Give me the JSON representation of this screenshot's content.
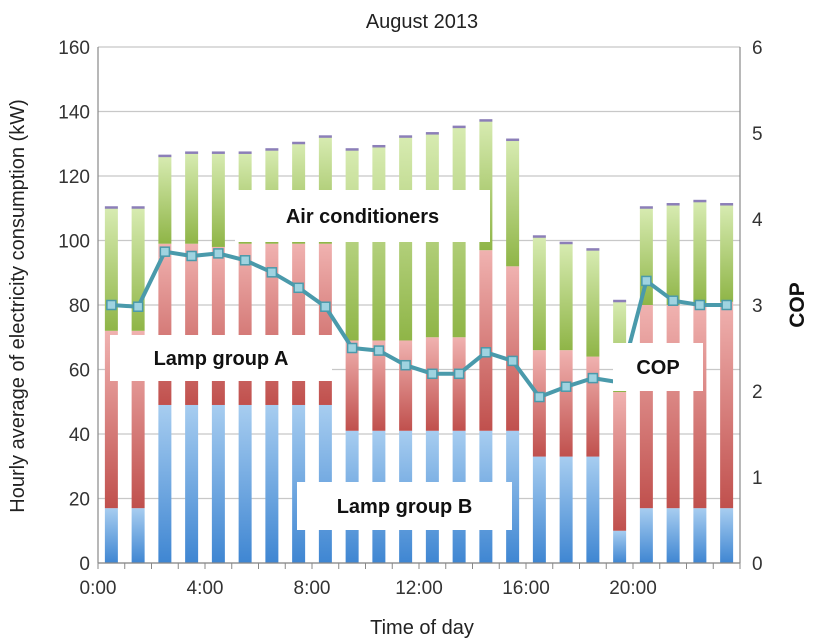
{
  "chart_data": {
    "type": "bar",
    "stacked": true,
    "title": "August 2013",
    "xlabel": "Time of day",
    "ylabel": "Hourly average of electricity consumption (kW)",
    "y2label": "COP",
    "ylim": [
      0,
      160
    ],
    "y2lim": [
      0,
      6
    ],
    "yticks": [
      "0",
      "20",
      "40",
      "60",
      "80",
      "100",
      "120",
      "140",
      "160"
    ],
    "y2ticks": [
      "0",
      "1",
      "2",
      "3",
      "4",
      "5",
      "6"
    ],
    "xticks": [
      "0:00",
      "4:00",
      "8:00",
      "12:00",
      "16:00",
      "20:00"
    ],
    "grid": true,
    "hours": [
      0,
      1,
      2,
      3,
      4,
      5,
      6,
      7,
      8,
      9,
      10,
      11,
      12,
      13,
      14,
      15,
      16,
      17,
      18,
      19,
      20,
      21,
      22,
      23
    ],
    "series": [
      {
        "name": "Lamp group B",
        "color": "#5b9bd5",
        "values": [
          17,
          17,
          49,
          49,
          49,
          49,
          49,
          49,
          49,
          41,
          41,
          41,
          41,
          41,
          41,
          41,
          33,
          33,
          33,
          10,
          17,
          17,
          17,
          17
        ]
      },
      {
        "name": "Lamp group A",
        "color": "#c0504d",
        "values": [
          55,
          55,
          50,
          50,
          49,
          50,
          50,
          50,
          50,
          28,
          28,
          28,
          29,
          29,
          56,
          51,
          33,
          33,
          31,
          43,
          63,
          63,
          63,
          64
        ]
      },
      {
        "name": "Air conditioners",
        "color": "#9bbb59",
        "values": [
          38,
          38,
          27,
          28,
          29,
          28,
          29,
          31,
          33,
          59,
          60,
          63,
          63,
          65,
          40,
          39,
          35,
          33,
          33,
          28,
          30,
          31,
          32,
          30
        ]
      }
    ],
    "cop": {
      "name": "COP",
      "color": "#4bacc6",
      "values": [
        3.0,
        2.98,
        3.62,
        3.57,
        3.6,
        3.52,
        3.38,
        3.2,
        2.98,
        2.5,
        2.47,
        2.3,
        2.2,
        2.2,
        2.45,
        2.35,
        1.93,
        2.05,
        2.15,
        2.1,
        3.28,
        3.05,
        3.0,
        3.0
      ]
    },
    "callouts": [
      "Air conditioners",
      "Lamp group A",
      "Lamp group B",
      "COP"
    ]
  }
}
